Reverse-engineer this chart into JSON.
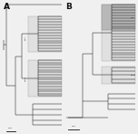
{
  "panel_A_label": "A",
  "panel_B_label": "B",
  "bg_color": "#f0f0f0",
  "line_color": "#111111",
  "text_color": "#111111",
  "figsize": [
    1.5,
    1.45
  ],
  "dpi": 100,
  "box_light": "#e0e0e0",
  "box_dark": "#b8b8b8"
}
